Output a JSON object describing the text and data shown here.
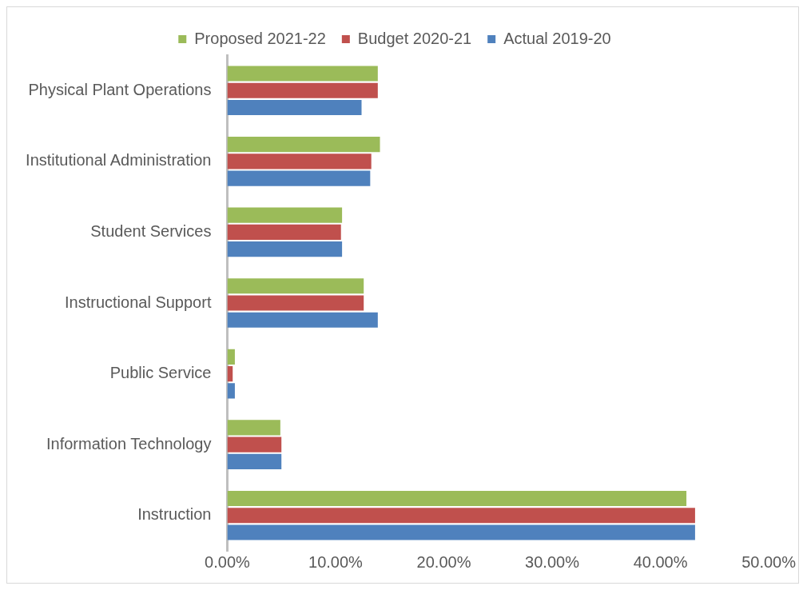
{
  "chart_data": {
    "type": "bar",
    "orientation": "horizontal",
    "categories": [
      "Physical Plant Operations",
      "Institutional Administration",
      "Student Services",
      "Instructional Support",
      "Public Service",
      "Information Technology",
      "Instruction"
    ],
    "series": [
      {
        "name": "Proposed 2021-22",
        "color": "#9bbb59",
        "values": [
          13.9,
          14.1,
          10.6,
          12.6,
          0.7,
          4.9,
          42.4
        ]
      },
      {
        "name": "Budget 2020-21",
        "color": "#c0504d",
        "values": [
          13.9,
          13.3,
          10.5,
          12.6,
          0.5,
          5.0,
          43.2
        ]
      },
      {
        "name": "Actual 2019-20",
        "color": "#4f81bd",
        "values": [
          12.4,
          13.2,
          10.6,
          13.9,
          0.7,
          5.0,
          43.2
        ]
      }
    ],
    "xlim": [
      0,
      50
    ],
    "xticks": [
      {
        "value": 0,
        "label": "0.00%"
      },
      {
        "value": 10,
        "label": "10.00%"
      },
      {
        "value": 20,
        "label": "20.00%"
      },
      {
        "value": 30,
        "label": "30.00%"
      },
      {
        "value": 40,
        "label": "40.00%"
      },
      {
        "value": 50,
        "label": "50.00%"
      }
    ],
    "grid": false,
    "legend": "top"
  }
}
